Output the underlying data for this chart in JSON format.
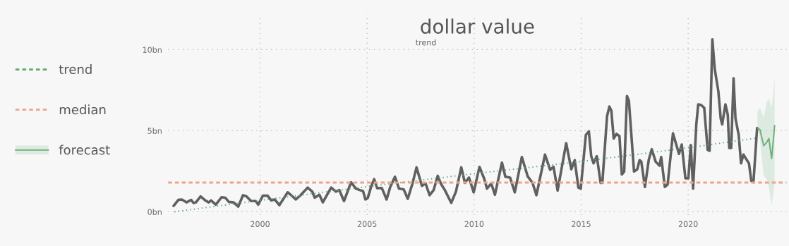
{
  "chart_data": {
    "type": "line",
    "title": "dollar value",
    "subtitle": "trend",
    "xlim": [
      1995.7,
      2024.6
    ],
    "xticks": [
      2000,
      2005,
      2010,
      2015,
      2020
    ],
    "ylim": [
      -0.2,
      12.2
    ],
    "yticks": [
      {
        "value": 0,
        "label": "0bn"
      },
      {
        "value": 5,
        "label": "5bn"
      },
      {
        "value": 10,
        "label": "10bn"
      }
    ],
    "grid": true,
    "legend": "left",
    "line_style": "solid",
    "marker": "none",
    "series": [
      {
        "color": "#606060",
        "x": [
          1995.96,
          1996.18,
          1996.34,
          1996.56,
          1996.78,
          1996.89,
          1997.0,
          1997.22,
          1997.44,
          1997.6,
          1997.71,
          1997.93,
          1998.2,
          1998.37,
          1998.54,
          1998.76,
          1998.98,
          1999.2,
          1999.36,
          1999.58,
          1999.8,
          1999.91,
          2000.13,
          2000.35,
          2000.52,
          2000.68,
          2000.9,
          2001.29,
          2001.45,
          2001.67,
          2001.89,
          2002.22,
          2002.44,
          2002.55,
          2002.77,
          2002.93,
          2003.32,
          2003.54,
          2003.7,
          2003.92,
          2004.25,
          2004.48,
          2004.65,
          2004.81,
          2004.92,
          2005.03,
          2005.2,
          2005.33,
          2005.47,
          2005.69,
          2005.91,
          2006.08,
          2006.3,
          2006.49,
          2006.71,
          2006.9,
          2007.12,
          2007.31,
          2007.56,
          2007.73,
          2007.92,
          2008.11,
          2008.3,
          2008.44,
          2008.63,
          2008.93,
          2009.15,
          2009.4,
          2009.57,
          2009.76,
          2009.98,
          2010.25,
          2010.47,
          2010.6,
          2010.8,
          2010.97,
          2011.3,
          2011.46,
          2011.68,
          2011.9,
          2012.23,
          2012.5,
          2012.73,
          2012.91,
          2013.31,
          2013.55,
          2013.71,
          2013.9,
          2014.3,
          2014.54,
          2014.7,
          2014.87,
          2014.98,
          2015.22,
          2015.36,
          2015.47,
          2015.58,
          2015.73,
          2015.91,
          2015.99,
          2016.21,
          2016.32,
          2016.41,
          2016.52,
          2016.65,
          2016.79,
          2016.9,
          2017.01,
          2017.14,
          2017.23,
          2017.47,
          2017.62,
          2017.73,
          2017.81,
          2017.98,
          2018.16,
          2018.3,
          2018.48,
          2018.66,
          2018.74,
          2018.91,
          2019.04,
          2019.29,
          2019.57,
          2019.7,
          2019.87,
          2020.01,
          2020.12,
          2020.23,
          2020.38,
          2020.47,
          2020.6,
          2020.75,
          2020.91,
          2021.0,
          2021.13,
          2021.24,
          2021.41,
          2021.52,
          2021.59,
          2021.74,
          2021.85,
          2021.92,
          2022.01,
          2022.12,
          2022.21,
          2022.36,
          2022.47,
          2022.58,
          2022.73,
          2022.84,
          2022.95,
          2023.05,
          2023.22
        ],
        "values": [
          0.36,
          0.73,
          0.76,
          0.58,
          0.73,
          0.54,
          0.58,
          0.95,
          0.7,
          0.58,
          0.7,
          0.44,
          0.9,
          0.87,
          0.61,
          0.58,
          0.32,
          1.02,
          0.95,
          0.66,
          0.66,
          0.44,
          0.99,
          0.99,
          0.7,
          0.76,
          0.41,
          1.2,
          1.02,
          0.76,
          1.02,
          1.49,
          1.24,
          0.87,
          1.05,
          0.58,
          1.49,
          1.24,
          1.34,
          0.66,
          1.82,
          1.43,
          1.34,
          1.28,
          0.76,
          0.85,
          1.6,
          2.01,
          1.46,
          1.46,
          0.76,
          1.53,
          2.16,
          1.43,
          1.38,
          0.8,
          1.75,
          2.74,
          1.6,
          1.75,
          1.02,
          1.34,
          2.22,
          1.75,
          1.34,
          0.55,
          1.24,
          2.74,
          1.78,
          2.11,
          1.2,
          2.77,
          2.04,
          1.43,
          1.75,
          1.05,
          3.03,
          2.16,
          2.11,
          1.2,
          3.38,
          2.19,
          1.78,
          1.02,
          3.53,
          2.59,
          2.77,
          1.31,
          4.23,
          2.62,
          3.18,
          1.49,
          1.43,
          4.74,
          4.96,
          3.43,
          2.99,
          3.43,
          1.78,
          1.78,
          5.9,
          6.49,
          6.24,
          4.52,
          4.81,
          4.66,
          2.3,
          2.48,
          7.14,
          6.85,
          2.48,
          2.62,
          3.18,
          3.1,
          1.53,
          3.21,
          3.86,
          3.09,
          2.84,
          3.38,
          1.53,
          1.68,
          4.84,
          3.57,
          4.15,
          2.07,
          2.07,
          4.11,
          1.43,
          5.39,
          6.63,
          6.59,
          6.41,
          3.82,
          3.76,
          10.64,
          8.82,
          7.43,
          5.76,
          5.39,
          6.63,
          5.98,
          3.94,
          3.94,
          8.24,
          5.76,
          4.74,
          2.99,
          3.53,
          3.21,
          2.99,
          1.9,
          1.82,
          5.17
        ]
      },
      {
        "name": "trend",
        "color": "#5aaa6e",
        "line_style": "dotted",
        "x": [
          1996.0,
          2000,
          2005,
          2010,
          2015,
          2020,
          2023.2
        ],
        "values": [
          0.0,
          0.7,
          1.55,
          2.35,
          3.1,
          3.95,
          4.55
        ]
      },
      {
        "name": "forecast",
        "color": "#6ab07a",
        "x": [
          2023.24,
          2023.35,
          2023.53,
          2023.68,
          2023.77,
          2023.9,
          2024.04
        ],
        "values": [
          5.17,
          5.07,
          4.08,
          4.3,
          4.52,
          3.28,
          5.32
        ],
        "lower": [
          5.17,
          4.5,
          2.2,
          2.0,
          1.5,
          0.4,
          1.8
        ],
        "upper": [
          6.2,
          6.4,
          5.8,
          6.8,
          7.0,
          6.4,
          8.3
        ]
      }
    ],
    "ref_lines": [
      {
        "axis": "y",
        "value": 1.8,
        "label": "median",
        "color": "#f0a48c",
        "line_style": "dashed"
      }
    ]
  }
}
